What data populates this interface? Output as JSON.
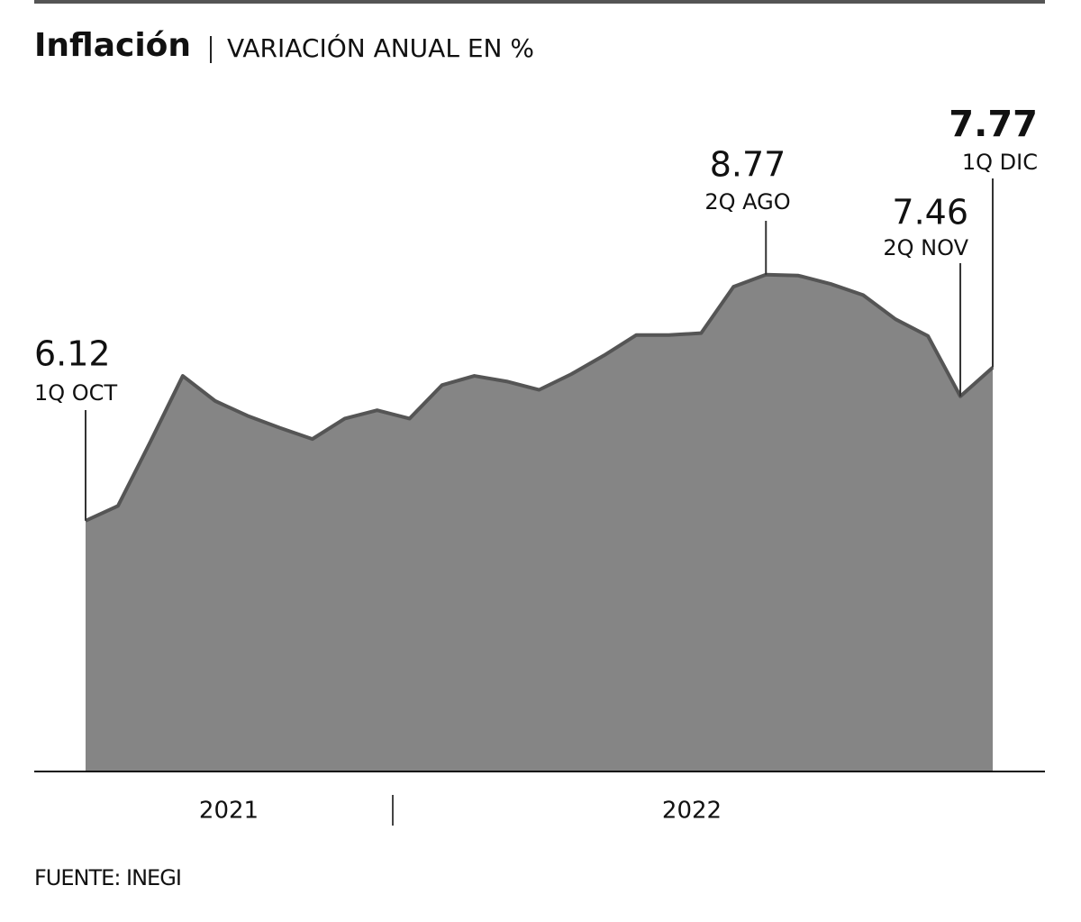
{
  "chart_data": {
    "type": "area",
    "title": "Inflación",
    "subtitle": "VARIACIÓN ANUAL EN %",
    "source": "FUENTE: INEGI",
    "year_labels": [
      "2021",
      "2022"
    ],
    "categories": [
      "1Q OCT",
      null,
      null,
      null,
      null,
      null,
      null,
      null,
      null,
      null,
      null,
      null,
      null,
      null,
      null,
      null,
      null,
      null,
      null,
      null,
      null,
      "2Q AGO",
      null,
      null,
      null,
      null,
      null,
      "2Q NOV",
      "1Q DIC"
    ],
    "values": [
      6.12,
      6.28,
      6.97,
      7.68,
      7.41,
      7.25,
      7.12,
      7.0,
      7.22,
      7.31,
      7.22,
      7.58,
      7.68,
      7.62,
      7.53,
      7.7,
      7.9,
      8.12,
      8.12,
      8.14,
      8.64,
      8.77,
      8.76,
      8.67,
      8.55,
      8.29,
      8.11,
      7.46,
      7.77
    ],
    "color": "#858585",
    "ylim": [
      3.42,
      10.66
    ]
  }
}
